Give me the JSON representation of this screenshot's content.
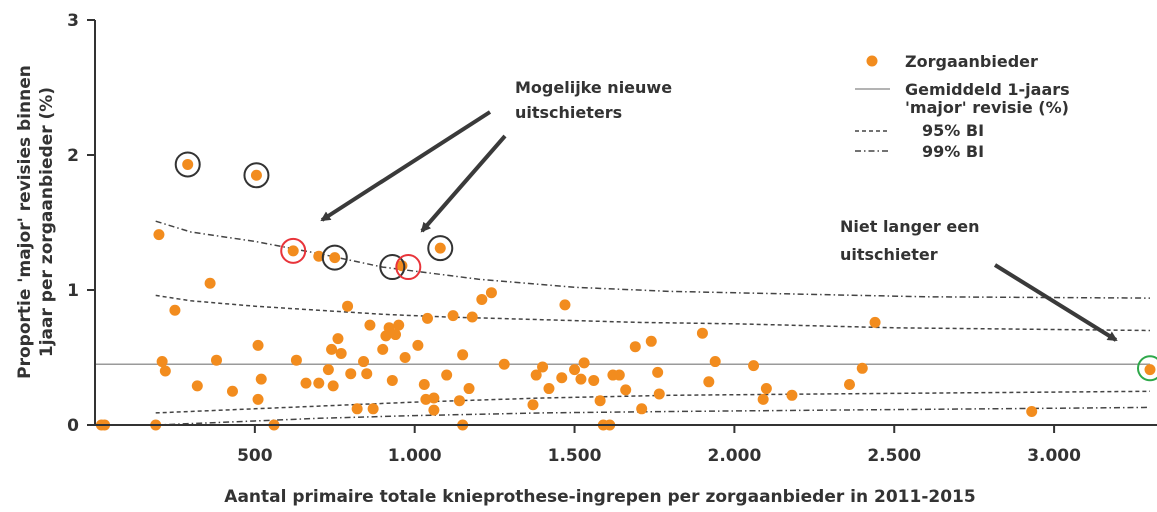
{
  "chart_data": {
    "type": "scatter",
    "xlabel": "Aantal primaire totale knieprothese-ingrepen per zorgaanbieder in 2011-2015",
    "ylabel_line1": "Proportie 'major' revisies binnen",
    "ylabel_line2": "1jaar per zorgaanbieder (%)",
    "xlim": [
      0,
      3300
    ],
    "ylim": [
      0,
      3
    ],
    "xticks": [
      500,
      1000,
      1500,
      2000,
      2500,
      3000
    ],
    "xtick_labels": [
      "500",
      "1.000",
      "1.500",
      "2.000",
      "2.500",
      "3.000"
    ],
    "yticks": [
      0,
      1,
      2,
      3
    ],
    "ytick_labels": [
      "0",
      "1",
      "2",
      "3"
    ],
    "grid": false,
    "legend_position": "top-right",
    "legend": [
      {
        "label": "Zorgaanbieder",
        "kind": "marker"
      },
      {
        "label": "Gemiddeld 1-jaars",
        "label2": "'major' revisie (%)",
        "kind": "solid"
      },
      {
        "label": "95% BI",
        "kind": "dashed"
      },
      {
        "label": "99% BI",
        "kind": "dashdot"
      }
    ],
    "colors": {
      "point": "#f28c1e",
      "line": "#9a9a9a",
      "ci": "#444444",
      "circle_black": "#333333",
      "circle_red": "#e8343a",
      "circle_green": "#2ea84a",
      "arrow": "#3a3a3a"
    },
    "mean_line": 0.45,
    "ci95_upper": [
      [
        190,
        0.96
      ],
      [
        300,
        0.92
      ],
      [
        500,
        0.88
      ],
      [
        700,
        0.85
      ],
      [
        900,
        0.82
      ],
      [
        1100,
        0.8
      ],
      [
        1400,
        0.78
      ],
      [
        1700,
        0.76
      ],
      [
        2000,
        0.75
      ],
      [
        2500,
        0.72
      ],
      [
        3300,
        0.7
      ]
    ],
    "ci95_lower": [
      [
        190,
        0.09
      ],
      [
        400,
        0.11
      ],
      [
        700,
        0.14
      ],
      [
        1000,
        0.17
      ],
      [
        1400,
        0.2
      ],
      [
        1800,
        0.22
      ],
      [
        2300,
        0.23
      ],
      [
        2800,
        0.24
      ],
      [
        3300,
        0.25
      ]
    ],
    "ci99_upper": [
      [
        190,
        1.51
      ],
      [
        300,
        1.43
      ],
      [
        500,
        1.36
      ],
      [
        700,
        1.27
      ],
      [
        900,
        1.17
      ],
      [
        1200,
        1.08
      ],
      [
        1500,
        1.02
      ],
      [
        1800,
        0.99
      ],
      [
        2200,
        0.97
      ],
      [
        2600,
        0.95
      ],
      [
        3300,
        0.94
      ]
    ],
    "ci99_lower": [
      [
        190,
        0.0
      ],
      [
        400,
        0.02
      ],
      [
        700,
        0.05
      ],
      [
        1000,
        0.07
      ],
      [
        1400,
        0.09
      ],
      [
        1800,
        0.1
      ],
      [
        2300,
        0.11
      ],
      [
        2800,
        0.12
      ],
      [
        3300,
        0.13
      ]
    ],
    "points": [
      {
        "x": 20,
        "y": 0.0
      },
      {
        "x": 30,
        "y": 0.0
      },
      {
        "x": 190,
        "y": 0.0
      },
      {
        "x": 200,
        "y": 1.41
      },
      {
        "x": 210,
        "y": 0.47
      },
      {
        "x": 220,
        "y": 0.4
      },
      {
        "x": 250,
        "y": 0.85
      },
      {
        "x": 290,
        "y": 1.93
      },
      {
        "x": 320,
        "y": 0.29
      },
      {
        "x": 360,
        "y": 1.05
      },
      {
        "x": 380,
        "y": 0.48
      },
      {
        "x": 430,
        "y": 0.25
      },
      {
        "x": 505,
        "y": 1.85
      },
      {
        "x": 510,
        "y": 0.59
      },
      {
        "x": 510,
        "y": 0.19
      },
      {
        "x": 520,
        "y": 0.34
      },
      {
        "x": 560,
        "y": 0.0
      },
      {
        "x": 620,
        "y": 1.29
      },
      {
        "x": 630,
        "y": 0.48
      },
      {
        "x": 660,
        "y": 0.31
      },
      {
        "x": 700,
        "y": 0.31
      },
      {
        "x": 700,
        "y": 1.25
      },
      {
        "x": 730,
        "y": 0.41
      },
      {
        "x": 740,
        "y": 0.56
      },
      {
        "x": 745,
        "y": 0.29
      },
      {
        "x": 750,
        "y": 1.24
      },
      {
        "x": 760,
        "y": 0.64
      },
      {
        "x": 770,
        "y": 0.53
      },
      {
        "x": 790,
        "y": 0.88
      },
      {
        "x": 800,
        "y": 0.38
      },
      {
        "x": 820,
        "y": 0.12
      },
      {
        "x": 840,
        "y": 0.47
      },
      {
        "x": 850,
        "y": 0.38
      },
      {
        "x": 860,
        "y": 0.74
      },
      {
        "x": 870,
        "y": 0.12
      },
      {
        "x": 900,
        "y": 0.56
      },
      {
        "x": 910,
        "y": 0.66
      },
      {
        "x": 920,
        "y": 0.72
      },
      {
        "x": 930,
        "y": 0.33
      },
      {
        "x": 940,
        "y": 0.67
      },
      {
        "x": 950,
        "y": 0.74
      },
      {
        "x": 960,
        "y": 1.18
      },
      {
        "x": 970,
        "y": 0.5
      },
      {
        "x": 1010,
        "y": 0.59
      },
      {
        "x": 1030,
        "y": 0.3
      },
      {
        "x": 1035,
        "y": 0.19
      },
      {
        "x": 1040,
        "y": 0.79
      },
      {
        "x": 1060,
        "y": 0.11
      },
      {
        "x": 1060,
        "y": 0.2
      },
      {
        "x": 1080,
        "y": 1.31
      },
      {
        "x": 1100,
        "y": 0.37
      },
      {
        "x": 1120,
        "y": 0.81
      },
      {
        "x": 1140,
        "y": 0.18
      },
      {
        "x": 1150,
        "y": 0.0
      },
      {
        "x": 1150,
        "y": 0.52
      },
      {
        "x": 1170,
        "y": 0.27
      },
      {
        "x": 1180,
        "y": 0.8
      },
      {
        "x": 1210,
        "y": 0.93
      },
      {
        "x": 1240,
        "y": 0.98
      },
      {
        "x": 1280,
        "y": 0.45
      },
      {
        "x": 1370,
        "y": 0.15
      },
      {
        "x": 1380,
        "y": 0.37
      },
      {
        "x": 1400,
        "y": 0.43
      },
      {
        "x": 1420,
        "y": 0.27
      },
      {
        "x": 1460,
        "y": 0.35
      },
      {
        "x": 1470,
        "y": 0.89
      },
      {
        "x": 1500,
        "y": 0.41
      },
      {
        "x": 1520,
        "y": 0.34
      },
      {
        "x": 1530,
        "y": 0.46
      },
      {
        "x": 1560,
        "y": 0.33
      },
      {
        "x": 1580,
        "y": 0.18
      },
      {
        "x": 1590,
        "y": 0.0
      },
      {
        "x": 1610,
        "y": 0.0
      },
      {
        "x": 1620,
        "y": 0.37
      },
      {
        "x": 1640,
        "y": 0.37
      },
      {
        "x": 1660,
        "y": 0.26
      },
      {
        "x": 1690,
        "y": 0.58
      },
      {
        "x": 1710,
        "y": 0.12
      },
      {
        "x": 1740,
        "y": 0.62
      },
      {
        "x": 1760,
        "y": 0.39
      },
      {
        "x": 1765,
        "y": 0.23
      },
      {
        "x": 1900,
        "y": 0.68
      },
      {
        "x": 1920,
        "y": 0.32
      },
      {
        "x": 1940,
        "y": 0.47
      },
      {
        "x": 2060,
        "y": 0.44
      },
      {
        "x": 2090,
        "y": 0.19
      },
      {
        "x": 2100,
        "y": 0.27
      },
      {
        "x": 2180,
        "y": 0.22
      },
      {
        "x": 2360,
        "y": 0.3
      },
      {
        "x": 2400,
        "y": 0.42
      },
      {
        "x": 2440,
        "y": 0.76
      },
      {
        "x": 2930,
        "y": 0.1
      },
      {
        "x": 3300,
        "y": 0.41
      }
    ],
    "highlight_circles": [
      {
        "x": 290,
        "y": 1.93,
        "color": "black"
      },
      {
        "x": 505,
        "y": 1.85,
        "color": "black"
      },
      {
        "x": 620,
        "y": 1.29,
        "color": "red"
      },
      {
        "x": 750,
        "y": 1.24,
        "color": "black"
      },
      {
        "x": 930,
        "y": 1.17,
        "color": "black"
      },
      {
        "x": 980,
        "y": 1.17,
        "color": "red"
      },
      {
        "x": 1080,
        "y": 1.31,
        "color": "black"
      },
      {
        "x": 3300,
        "y": 0.42,
        "color": "green"
      }
    ],
    "annotations": [
      {
        "lines": [
          "Mogelijke nieuwe",
          "uitschieters"
        ]
      },
      {
        "lines": [
          "Niet langer een",
          "uitschieter"
        ]
      }
    ]
  }
}
